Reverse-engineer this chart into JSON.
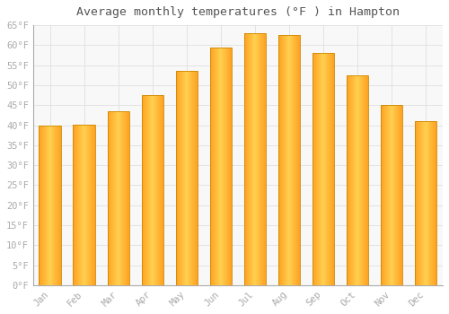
{
  "title": "Average monthly temperatures (°F ) in Hampton",
  "months": [
    "Jan",
    "Feb",
    "Mar",
    "Apr",
    "May",
    "Jun",
    "Jul",
    "Aug",
    "Sep",
    "Oct",
    "Nov",
    "Dec"
  ],
  "values": [
    39.9,
    40.1,
    43.5,
    47.5,
    53.5,
    59.5,
    63.0,
    62.5,
    58.0,
    52.5,
    45.0,
    41.0
  ],
  "bar_color_left": "#FFA020",
  "bar_color_center": "#FFD050",
  "bar_color_right": "#FFA020",
  "bar_edge_color": "#CC8800",
  "background_color": "#FFFFFF",
  "plot_bg_color": "#F8F8F8",
  "grid_color": "#E0E0E0",
  "tick_label_color": "#AAAAAA",
  "title_color": "#555555",
  "ylim": [
    0,
    65
  ],
  "ytick_step": 5,
  "title_fontsize": 9.5,
  "tick_fontsize": 7.5,
  "bar_width": 0.65
}
